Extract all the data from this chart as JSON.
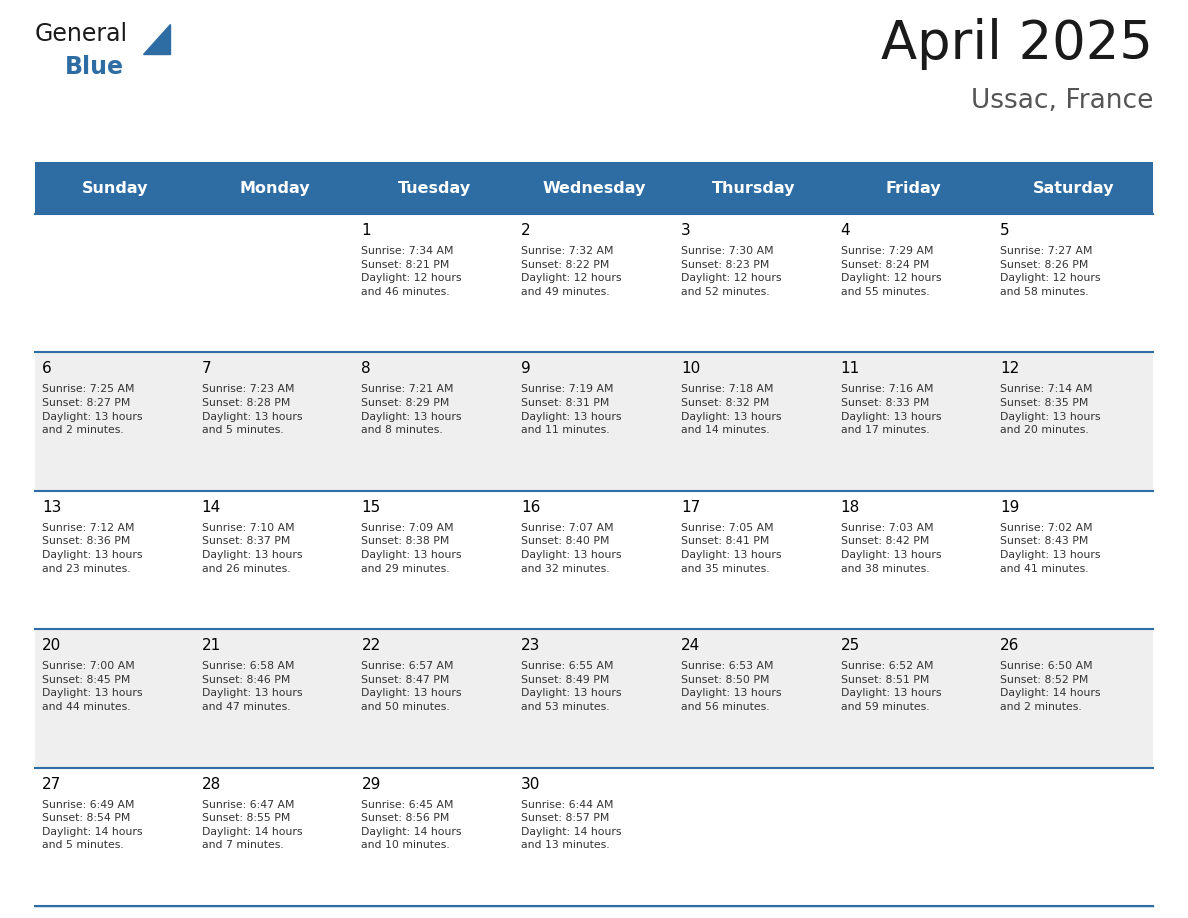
{
  "title": "April 2025",
  "subtitle": "Ussac, France",
  "header_bg": "#2E6DA4",
  "header_text_color": "#FFFFFF",
  "days_of_week": [
    "Sunday",
    "Monday",
    "Tuesday",
    "Wednesday",
    "Thursday",
    "Friday",
    "Saturday"
  ],
  "row_bg_even": "#FFFFFF",
  "row_bg_odd": "#EFEFEF",
  "cell_border_color": "#2E6DA4",
  "day_number_color": "#000000",
  "cell_text_color": "#333333",
  "calendar": [
    [
      {
        "day": "",
        "info": ""
      },
      {
        "day": "",
        "info": ""
      },
      {
        "day": "1",
        "info": "Sunrise: 7:34 AM\nSunset: 8:21 PM\nDaylight: 12 hours\nand 46 minutes."
      },
      {
        "day": "2",
        "info": "Sunrise: 7:32 AM\nSunset: 8:22 PM\nDaylight: 12 hours\nand 49 minutes."
      },
      {
        "day": "3",
        "info": "Sunrise: 7:30 AM\nSunset: 8:23 PM\nDaylight: 12 hours\nand 52 minutes."
      },
      {
        "day": "4",
        "info": "Sunrise: 7:29 AM\nSunset: 8:24 PM\nDaylight: 12 hours\nand 55 minutes."
      },
      {
        "day": "5",
        "info": "Sunrise: 7:27 AM\nSunset: 8:26 PM\nDaylight: 12 hours\nand 58 minutes."
      }
    ],
    [
      {
        "day": "6",
        "info": "Sunrise: 7:25 AM\nSunset: 8:27 PM\nDaylight: 13 hours\nand 2 minutes."
      },
      {
        "day": "7",
        "info": "Sunrise: 7:23 AM\nSunset: 8:28 PM\nDaylight: 13 hours\nand 5 minutes."
      },
      {
        "day": "8",
        "info": "Sunrise: 7:21 AM\nSunset: 8:29 PM\nDaylight: 13 hours\nand 8 minutes."
      },
      {
        "day": "9",
        "info": "Sunrise: 7:19 AM\nSunset: 8:31 PM\nDaylight: 13 hours\nand 11 minutes."
      },
      {
        "day": "10",
        "info": "Sunrise: 7:18 AM\nSunset: 8:32 PM\nDaylight: 13 hours\nand 14 minutes."
      },
      {
        "day": "11",
        "info": "Sunrise: 7:16 AM\nSunset: 8:33 PM\nDaylight: 13 hours\nand 17 minutes."
      },
      {
        "day": "12",
        "info": "Sunrise: 7:14 AM\nSunset: 8:35 PM\nDaylight: 13 hours\nand 20 minutes."
      }
    ],
    [
      {
        "day": "13",
        "info": "Sunrise: 7:12 AM\nSunset: 8:36 PM\nDaylight: 13 hours\nand 23 minutes."
      },
      {
        "day": "14",
        "info": "Sunrise: 7:10 AM\nSunset: 8:37 PM\nDaylight: 13 hours\nand 26 minutes."
      },
      {
        "day": "15",
        "info": "Sunrise: 7:09 AM\nSunset: 8:38 PM\nDaylight: 13 hours\nand 29 minutes."
      },
      {
        "day": "16",
        "info": "Sunrise: 7:07 AM\nSunset: 8:40 PM\nDaylight: 13 hours\nand 32 minutes."
      },
      {
        "day": "17",
        "info": "Sunrise: 7:05 AM\nSunset: 8:41 PM\nDaylight: 13 hours\nand 35 minutes."
      },
      {
        "day": "18",
        "info": "Sunrise: 7:03 AM\nSunset: 8:42 PM\nDaylight: 13 hours\nand 38 minutes."
      },
      {
        "day": "19",
        "info": "Sunrise: 7:02 AM\nSunset: 8:43 PM\nDaylight: 13 hours\nand 41 minutes."
      }
    ],
    [
      {
        "day": "20",
        "info": "Sunrise: 7:00 AM\nSunset: 8:45 PM\nDaylight: 13 hours\nand 44 minutes."
      },
      {
        "day": "21",
        "info": "Sunrise: 6:58 AM\nSunset: 8:46 PM\nDaylight: 13 hours\nand 47 minutes."
      },
      {
        "day": "22",
        "info": "Sunrise: 6:57 AM\nSunset: 8:47 PM\nDaylight: 13 hours\nand 50 minutes."
      },
      {
        "day": "23",
        "info": "Sunrise: 6:55 AM\nSunset: 8:49 PM\nDaylight: 13 hours\nand 53 minutes."
      },
      {
        "day": "24",
        "info": "Sunrise: 6:53 AM\nSunset: 8:50 PM\nDaylight: 13 hours\nand 56 minutes."
      },
      {
        "day": "25",
        "info": "Sunrise: 6:52 AM\nSunset: 8:51 PM\nDaylight: 13 hours\nand 59 minutes."
      },
      {
        "day": "26",
        "info": "Sunrise: 6:50 AM\nSunset: 8:52 PM\nDaylight: 14 hours\nand 2 minutes."
      }
    ],
    [
      {
        "day": "27",
        "info": "Sunrise: 6:49 AM\nSunset: 8:54 PM\nDaylight: 14 hours\nand 5 minutes."
      },
      {
        "day": "28",
        "info": "Sunrise: 6:47 AM\nSunset: 8:55 PM\nDaylight: 14 hours\nand 7 minutes."
      },
      {
        "day": "29",
        "info": "Sunrise: 6:45 AM\nSunset: 8:56 PM\nDaylight: 14 hours\nand 10 minutes."
      },
      {
        "day": "30",
        "info": "Sunrise: 6:44 AM\nSunset: 8:57 PM\nDaylight: 14 hours\nand 13 minutes."
      },
      {
        "day": "",
        "info": ""
      },
      {
        "day": "",
        "info": ""
      },
      {
        "day": "",
        "info": ""
      }
    ]
  ],
  "logo_text_general": "General",
  "logo_text_blue": "Blue",
  "logo_color_general": "#1a1a1a",
  "logo_color_blue": "#2E6DA4",
  "figsize": [
    11.88,
    9.18
  ],
  "dpi": 100
}
